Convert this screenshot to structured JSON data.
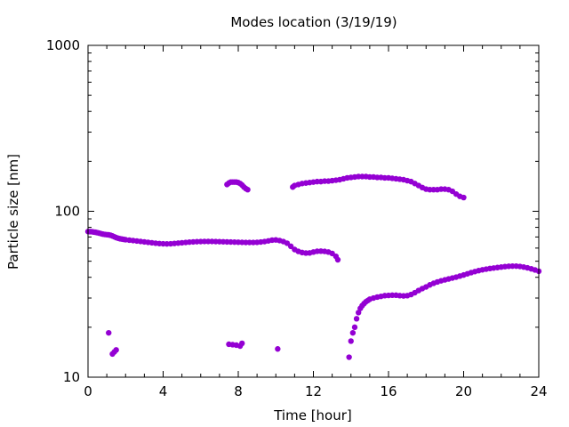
{
  "chart_data": {
    "type": "scatter",
    "title": "Modes location (3/19/19)",
    "xlabel": "Time [hour]",
    "ylabel": "Particle size [nm]",
    "xlim": [
      0,
      24
    ],
    "ylim": [
      10,
      1000
    ],
    "yscale": "log",
    "x_ticks": [
      0,
      4,
      8,
      12,
      16,
      20,
      24
    ],
    "x_tick_labels": [
      "0",
      "4",
      "8",
      "12",
      "16",
      "20",
      "24"
    ],
    "y_ticks": [
      10,
      100,
      1000
    ],
    "y_tick_labels": [
      "10",
      "100",
      "1000"
    ],
    "grid": false,
    "marker_color": "#9400d3",
    "series": [
      {
        "points": [
          [
            0.0,
            75.5
          ],
          [
            0.1,
            75.4
          ],
          [
            0.2,
            75.3
          ],
          [
            0.3,
            75.0
          ],
          [
            0.4,
            74.7
          ],
          [
            0.5,
            74.3
          ],
          [
            0.6,
            73.8
          ],
          [
            0.7,
            73.3
          ],
          [
            0.8,
            72.8
          ],
          [
            0.9,
            72.5
          ],
          [
            1.0,
            72.3
          ],
          [
            1.1,
            72.1
          ],
          [
            1.2,
            71.7
          ],
          [
            1.3,
            71.0
          ],
          [
            1.4,
            70.2
          ],
          [
            1.5,
            69.4
          ],
          [
            1.6,
            68.8
          ],
          [
            1.7,
            68.3
          ],
          [
            1.8,
            68.0
          ],
          [
            1.9,
            67.7
          ],
          [
            2.0,
            67.4
          ],
          [
            2.2,
            67.0
          ],
          [
            2.4,
            66.6
          ],
          [
            2.6,
            66.2
          ],
          [
            2.8,
            65.8
          ],
          [
            3.0,
            65.4
          ],
          [
            3.2,
            65.0
          ],
          [
            3.4,
            64.6
          ],
          [
            3.6,
            64.2
          ],
          [
            3.8,
            63.9
          ],
          [
            4.0,
            63.7
          ],
          [
            4.2,
            63.6
          ],
          [
            4.4,
            63.7
          ],
          [
            4.6,
            64.0
          ],
          [
            4.8,
            64.3
          ],
          [
            5.0,
            64.6
          ],
          [
            5.2,
            64.9
          ],
          [
            5.4,
            65.2
          ],
          [
            5.6,
            65.4
          ],
          [
            5.8,
            65.6
          ],
          [
            6.0,
            65.7
          ],
          [
            6.2,
            65.8
          ],
          [
            6.4,
            65.8
          ],
          [
            6.6,
            65.8
          ],
          [
            6.8,
            65.7
          ],
          [
            7.0,
            65.6
          ],
          [
            7.2,
            65.5
          ],
          [
            7.4,
            65.4
          ],
          [
            7.6,
            65.3
          ],
          [
            7.8,
            65.2
          ],
          [
            8.0,
            65.1
          ],
          [
            8.2,
            65.0
          ],
          [
            8.4,
            64.9
          ],
          [
            8.6,
            64.9
          ],
          [
            8.8,
            64.9
          ],
          [
            9.0,
            65.0
          ],
          [
            9.2,
            65.3
          ],
          [
            9.4,
            65.7
          ],
          [
            9.6,
            66.3
          ],
          [
            9.8,
            67.0
          ],
          [
            10.0,
            67.2
          ],
          [
            10.2,
            66.6
          ],
          [
            10.4,
            65.7
          ],
          [
            10.6,
            64.2
          ],
          [
            10.8,
            61.5
          ],
          [
            11.0,
            58.8
          ],
          [
            11.2,
            57.3
          ],
          [
            11.4,
            56.4
          ],
          [
            11.6,
            56.0
          ],
          [
            11.8,
            56.1
          ],
          [
            12.0,
            56.8
          ],
          [
            12.2,
            57.4
          ],
          [
            12.4,
            57.5
          ],
          [
            12.6,
            57.3
          ],
          [
            12.8,
            56.8
          ],
          [
            13.0,
            55.7
          ],
          [
            13.2,
            53.5
          ],
          [
            13.3,
            51.0
          ]
        ]
      },
      {
        "points": [
          [
            7.4,
            145
          ],
          [
            7.5,
            148
          ],
          [
            7.6,
            150
          ],
          [
            7.7,
            150
          ],
          [
            7.8,
            150
          ],
          [
            7.9,
            150
          ],
          [
            8.0,
            149
          ],
          [
            8.1,
            147
          ],
          [
            8.2,
            144
          ],
          [
            8.3,
            140
          ],
          [
            8.4,
            137
          ],
          [
            8.5,
            135
          ]
        ]
      },
      {
        "points": [
          [
            10.9,
            140
          ],
          [
            11.0,
            143
          ],
          [
            11.2,
            145
          ],
          [
            11.4,
            147
          ],
          [
            11.6,
            148
          ],
          [
            11.8,
            149
          ],
          [
            12.0,
            150
          ],
          [
            12.2,
            151
          ],
          [
            12.4,
            151
          ],
          [
            12.6,
            152
          ],
          [
            12.8,
            152
          ],
          [
            13.0,
            153
          ],
          [
            13.2,
            154
          ],
          [
            13.4,
            155
          ],
          [
            13.6,
            157
          ],
          [
            13.8,
            159
          ],
          [
            14.0,
            160
          ],
          [
            14.2,
            161
          ],
          [
            14.4,
            162
          ],
          [
            14.6,
            162
          ],
          [
            14.8,
            162
          ],
          [
            15.0,
            161
          ],
          [
            15.2,
            161
          ],
          [
            15.4,
            160
          ],
          [
            15.6,
            160
          ],
          [
            15.8,
            159
          ],
          [
            16.0,
            159
          ],
          [
            16.2,
            158
          ],
          [
            16.4,
            157
          ],
          [
            16.6,
            156
          ],
          [
            16.8,
            155
          ],
          [
            17.0,
            153
          ],
          [
            17.2,
            151
          ],
          [
            17.4,
            147
          ],
          [
            17.6,
            143
          ],
          [
            17.8,
            139
          ],
          [
            18.0,
            136
          ],
          [
            18.2,
            135
          ],
          [
            18.4,
            135
          ],
          [
            18.6,
            135
          ],
          [
            18.8,
            136
          ],
          [
            19.0,
            136
          ],
          [
            19.2,
            135
          ],
          [
            19.4,
            132
          ],
          [
            19.6,
            127
          ],
          [
            19.8,
            123
          ],
          [
            20.0,
            121
          ]
        ]
      },
      {
        "points": [
          [
            13.9,
            13.2
          ],
          [
            14.0,
            16.5
          ],
          [
            14.1,
            18.5
          ],
          [
            14.2,
            20.0
          ],
          [
            14.3,
            22.5
          ],
          [
            14.4,
            24.5
          ],
          [
            14.5,
            26.0
          ],
          [
            14.6,
            27.0
          ],
          [
            14.7,
            27.8
          ],
          [
            14.8,
            28.5
          ],
          [
            14.9,
            29.0
          ],
          [
            15.0,
            29.5
          ],
          [
            15.2,
            30.0
          ],
          [
            15.4,
            30.4
          ],
          [
            15.6,
            30.7
          ],
          [
            15.8,
            31.0
          ],
          [
            16.0,
            31.1
          ],
          [
            16.2,
            31.2
          ],
          [
            16.4,
            31.2
          ],
          [
            16.6,
            31.0
          ],
          [
            16.8,
            30.9
          ],
          [
            17.0,
            31.0
          ],
          [
            17.2,
            31.5
          ],
          [
            17.4,
            32.3
          ],
          [
            17.6,
            33.3
          ],
          [
            17.8,
            34.2
          ],
          [
            18.0,
            35.0
          ],
          [
            18.2,
            36.0
          ],
          [
            18.4,
            36.8
          ],
          [
            18.6,
            37.5
          ],
          [
            18.8,
            38.1
          ],
          [
            19.0,
            38.6
          ],
          [
            19.2,
            39.1
          ],
          [
            19.4,
            39.6
          ],
          [
            19.6,
            40.1
          ],
          [
            19.8,
            40.7
          ],
          [
            20.0,
            41.3
          ],
          [
            20.2,
            42.0
          ],
          [
            20.4,
            42.7
          ],
          [
            20.6,
            43.3
          ],
          [
            20.8,
            43.9
          ],
          [
            21.0,
            44.4
          ],
          [
            21.2,
            44.8
          ],
          [
            21.4,
            45.2
          ],
          [
            21.6,
            45.5
          ],
          [
            21.8,
            45.8
          ],
          [
            22.0,
            46.1
          ],
          [
            22.2,
            46.4
          ],
          [
            22.4,
            46.6
          ],
          [
            22.6,
            46.7
          ],
          [
            22.8,
            46.7
          ],
          [
            23.0,
            46.5
          ],
          [
            23.2,
            46.1
          ],
          [
            23.4,
            45.6
          ],
          [
            23.6,
            45.0
          ],
          [
            23.8,
            44.3
          ],
          [
            24.0,
            43.5
          ]
        ]
      },
      {
        "points": [
          [
            1.1,
            18.5
          ],
          [
            1.3,
            13.8
          ],
          [
            1.4,
            14.2
          ],
          [
            1.5,
            14.6
          ],
          [
            7.5,
            15.8
          ],
          [
            7.7,
            15.7
          ],
          [
            7.9,
            15.6
          ],
          [
            8.1,
            15.4
          ],
          [
            8.2,
            16.0
          ],
          [
            10.1,
            14.8
          ]
        ]
      }
    ]
  }
}
